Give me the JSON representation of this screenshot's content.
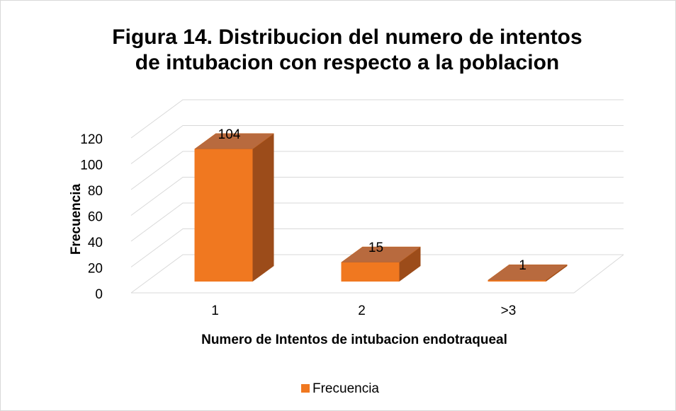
{
  "chart_data": {
    "type": "bar3d",
    "title": "Figura 14. Distribucion del numero de intentos de intubacion con respecto a la poblacion",
    "x_label": "Numero de Intentos de intubacion endotraqueal",
    "y_label": "Frecuencia",
    "categories": [
      "1",
      "2",
      ">3"
    ],
    "series": [
      {
        "name": "Frecuencia",
        "color": "#f07820",
        "values": [
          104,
          15,
          1
        ]
      }
    ],
    "ylim": [
      0,
      120
    ],
    "yticks": [
      0,
      20,
      40,
      60,
      80,
      100,
      120
    ],
    "grid": true,
    "legend": "bottom"
  }
}
